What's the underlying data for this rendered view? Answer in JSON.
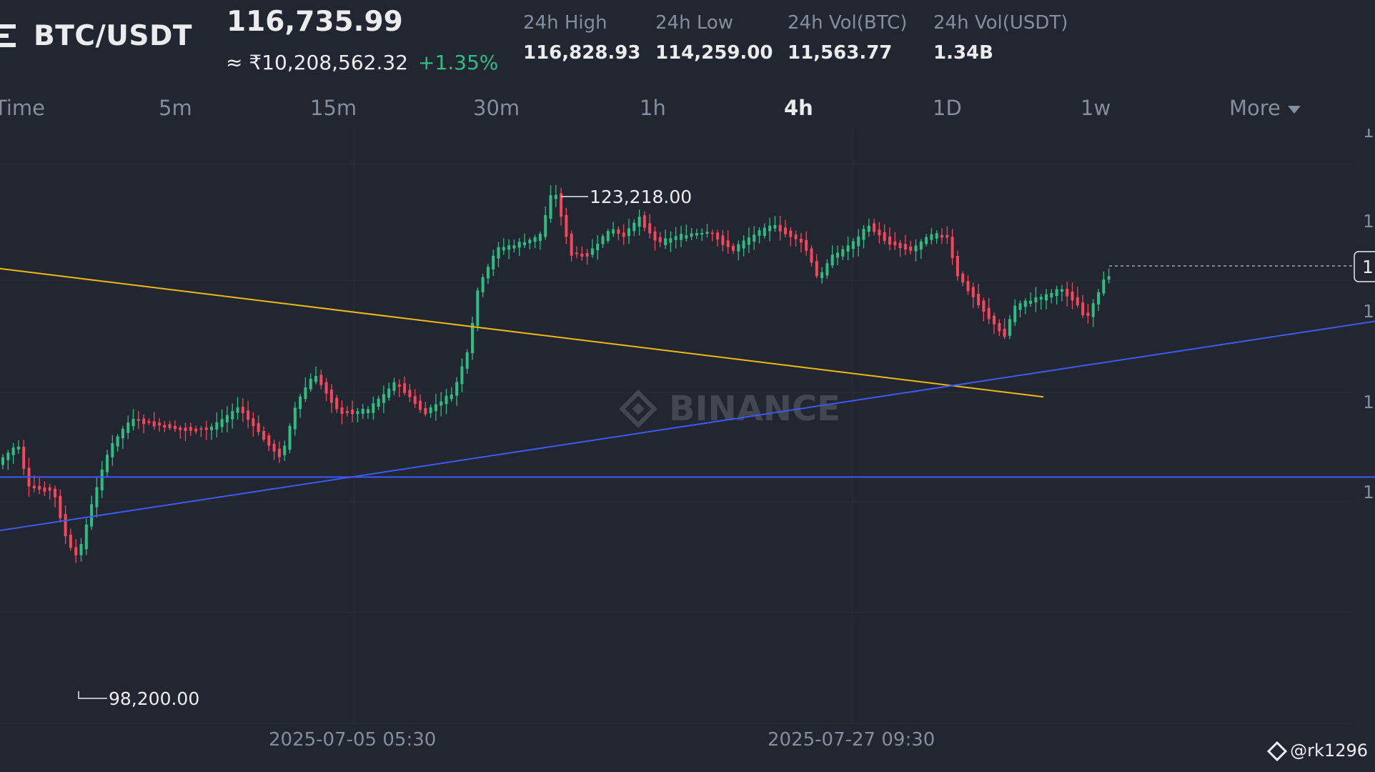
{
  "header": {
    "pair": "BTC/USDT",
    "price": "116,735.99",
    "fiat_price": "≈ ₹10,208,562.32",
    "change": "+1.35%",
    "stats": [
      {
        "label": "24h High",
        "value": "116,828.93"
      },
      {
        "label": "24h Low",
        "value": "114,259.00"
      },
      {
        "label": "24h Vol(BTC)",
        "value": "11,563.77"
      },
      {
        "label": "24h Vol(USDT)",
        "value": "1.34B"
      }
    ]
  },
  "timeframes": {
    "items": [
      "Time",
      "5m",
      "15m",
      "30m",
      "1h",
      "4h",
      "1D",
      "1w"
    ],
    "active": "4h",
    "more_label": "More"
  },
  "chart_data": {
    "type": "candlestick",
    "symbol": "BTC/USDT",
    "interval": "4h",
    "x_labels": [
      "2025-07-05 05:30",
      "2025-07-27 09:30"
    ],
    "annotations": {
      "high_label": "123,218.00",
      "low_label": "98,200.00",
      "watermark_text": "BINANCE"
    },
    "ylim": [
      94000,
      126000
    ],
    "price_axis_labels": [
      "1",
      "1",
      "1",
      "1",
      "1"
    ],
    "current_price_tag": "1",
    "trendlines": [
      {
        "name": "",
        "color": "#F0B90B",
        "points": [
          [
            -115,
            123600
          ],
          [
            200,
            112000
          ]
        ]
      },
      {
        "name": "",
        "color": "#3D5AFE",
        "points": [
          [
            -150,
            97500
          ],
          [
            300,
            118000
          ]
        ]
      },
      {
        "name": "",
        "color": "#3D5AFE",
        "points": [
          [
            -170,
            107400
          ],
          [
            300,
            107400
          ]
        ]
      }
    ],
    "grid": true,
    "colors": {
      "up": "#2EBD85",
      "down": "#F6465D",
      "grid": "#2B3039",
      "axis_text": "#848E9C"
    }
  },
  "footer": {
    "watermark_handle": "@rk1296"
  }
}
